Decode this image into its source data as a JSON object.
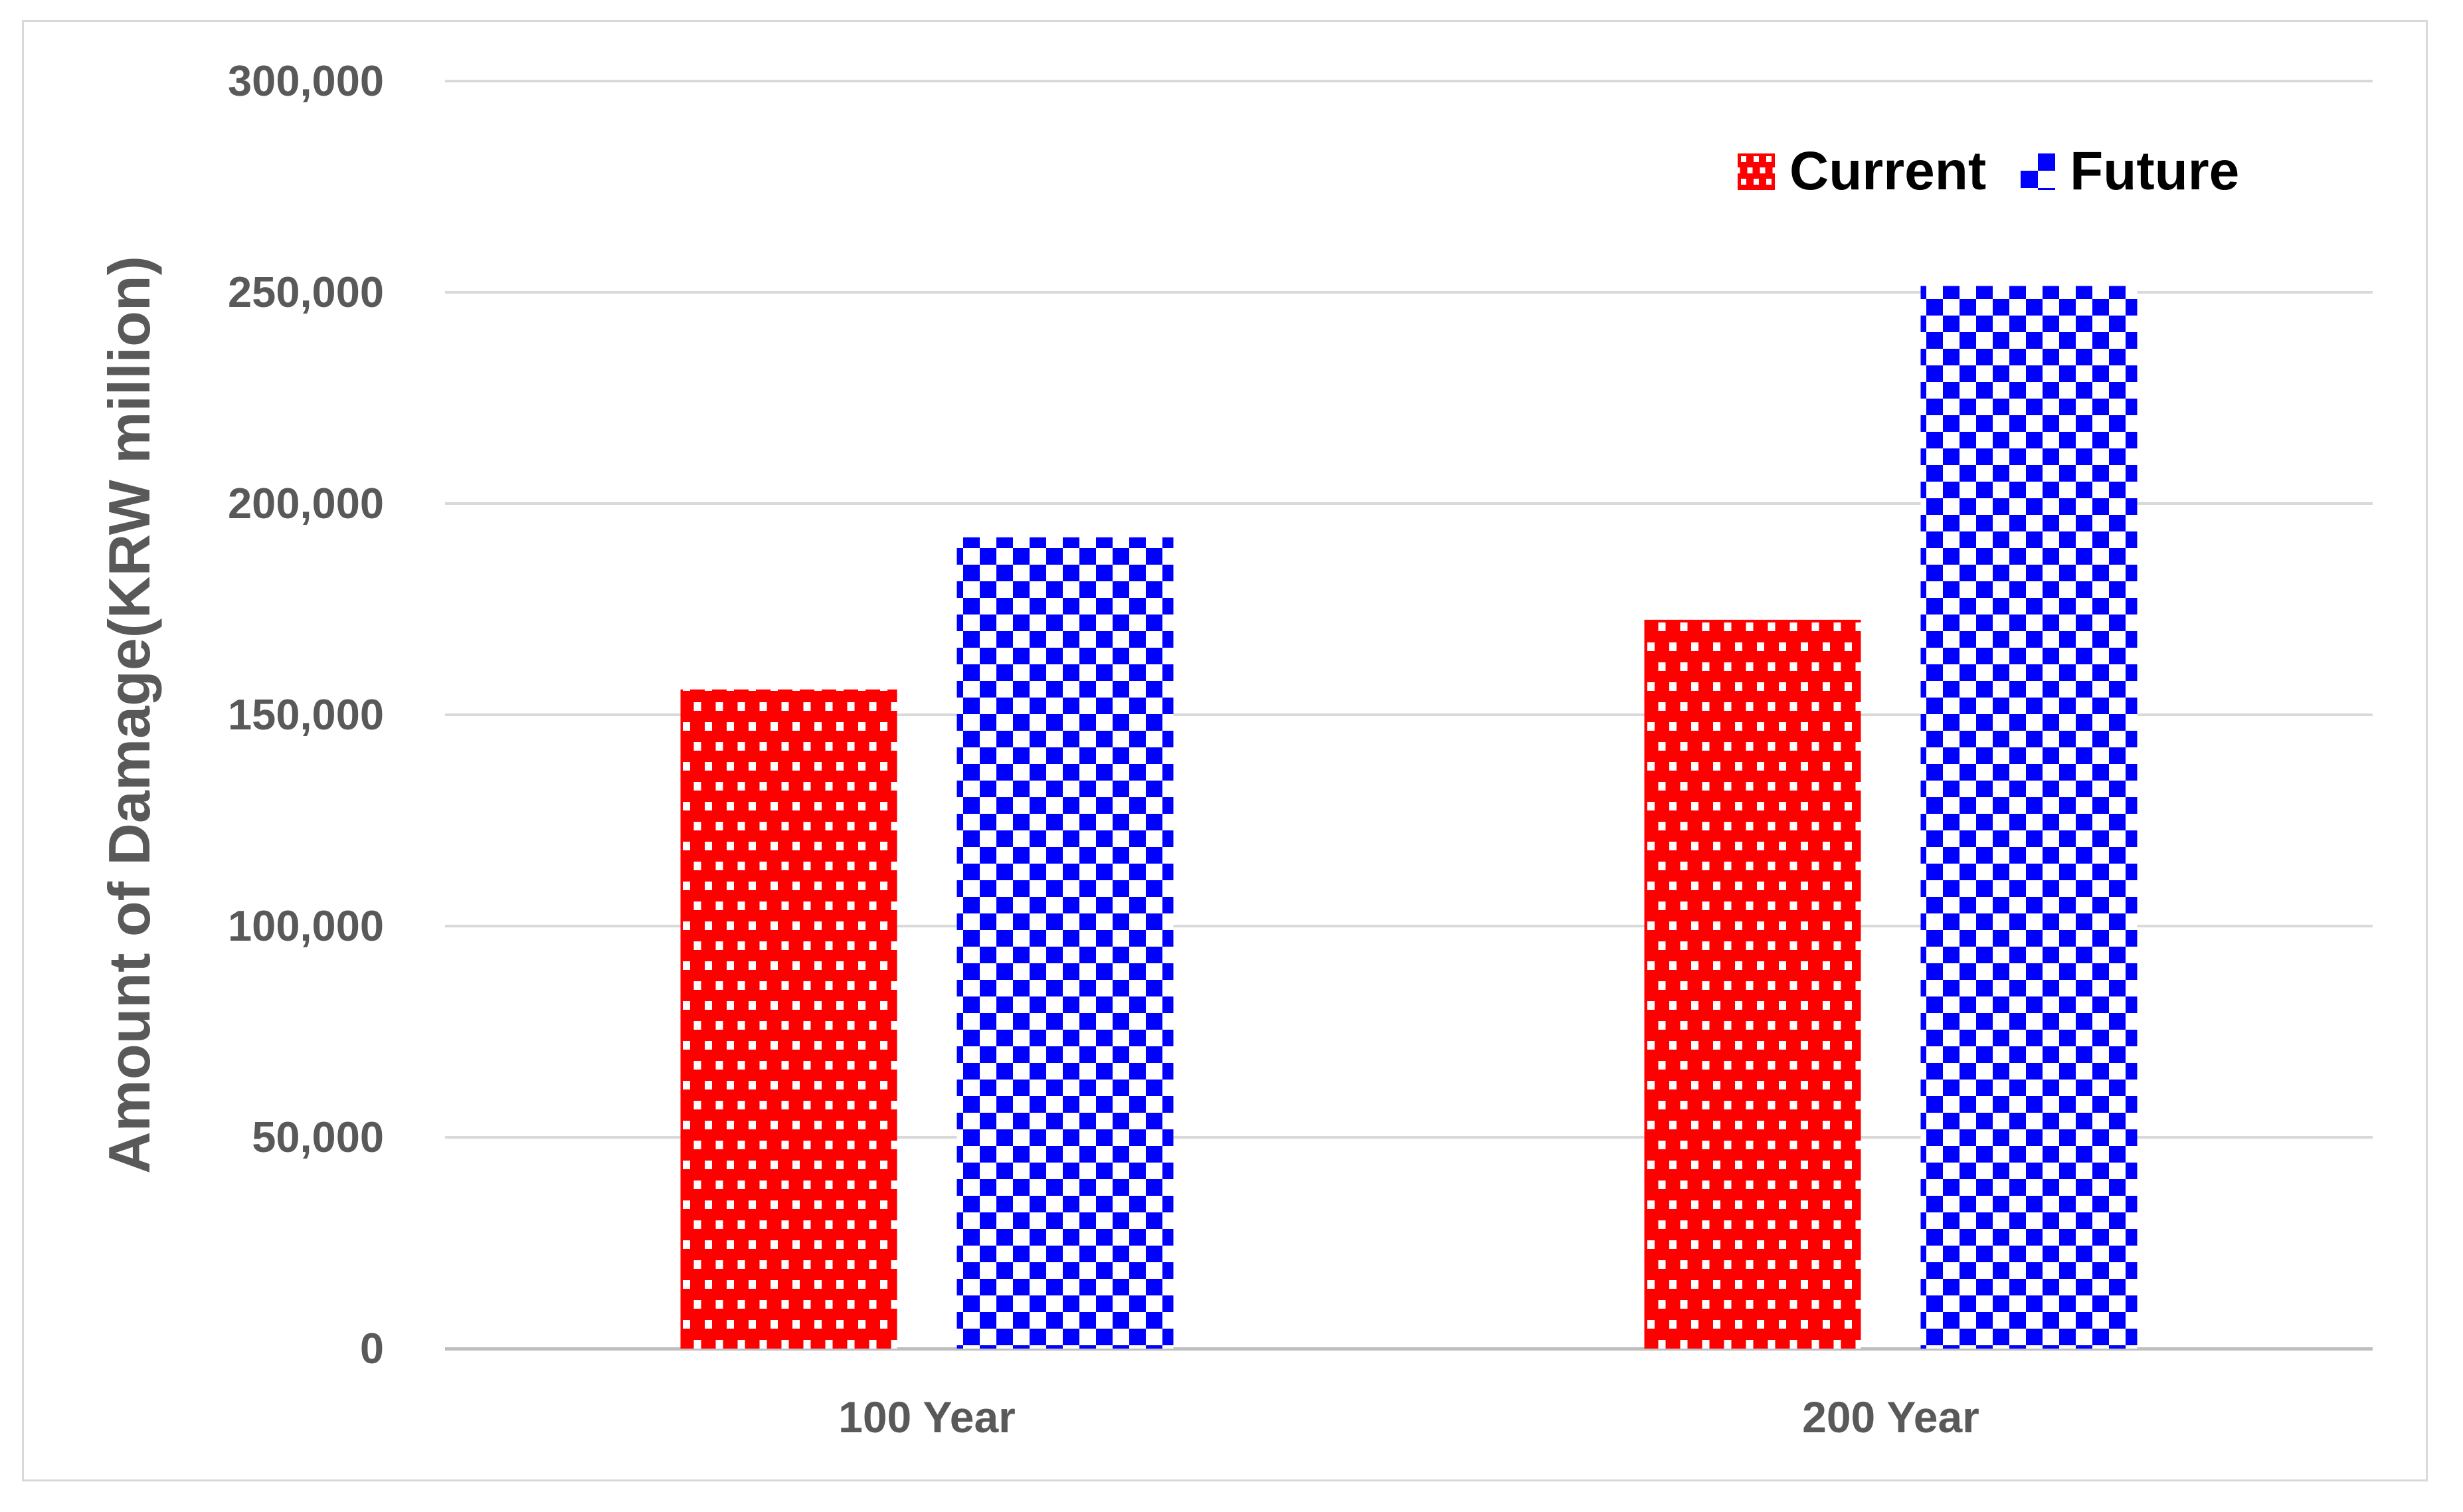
{
  "chart_data": {
    "type": "bar",
    "title": "",
    "categories": [
      "100 Year",
      "200 Year"
    ],
    "series": [
      {
        "name": "Current",
        "values": [
          156000,
          172500
        ],
        "color": "#FF0000",
        "pattern": "red-with-white-square-dots"
      },
      {
        "name": "Future",
        "values": [
          192000,
          251500
        ],
        "color": "#0000FF",
        "pattern": "blue-white-checkerboard"
      }
    ],
    "xlabel": "",
    "ylabel": "Amount of Damage(KRW million)",
    "ylim": [
      0,
      300000
    ],
    "ytick_interval": 50000,
    "ytick_labels": [
      "0",
      "50,000",
      "100,000",
      "150,000",
      "200,000",
      "250,000",
      "300,000"
    ],
    "grid": true,
    "legend_position": "top-right",
    "colors": {
      "axis_text": "#595959",
      "gridline": "#D9D9D9",
      "axis_line": "#BFBFBF",
      "legend_text": "#000000",
      "frame_border": "#D9D9D9",
      "background": "#FFFFFF"
    }
  }
}
